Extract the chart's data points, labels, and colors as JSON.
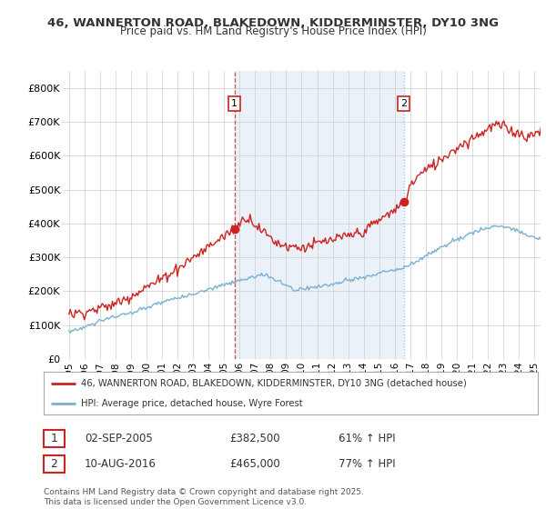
{
  "title_line1": "46, WANNERTON ROAD, BLAKEDOWN, KIDDERMINSTER, DY10 3NG",
  "title_line2": "Price paid vs. HM Land Registry's House Price Index (HPI)",
  "ylim": [
    0,
    850000
  ],
  "yticks": [
    0,
    100000,
    200000,
    300000,
    400000,
    500000,
    600000,
    700000,
    800000
  ],
  "ytick_labels": [
    "£0",
    "£100K",
    "£200K",
    "£300K",
    "£400K",
    "£500K",
    "£600K",
    "£700K",
    "£800K"
  ],
  "xlim_start": 1994.6,
  "xlim_end": 2025.4,
  "xticks": [
    1995,
    1996,
    1997,
    1998,
    1999,
    2000,
    2001,
    2002,
    2003,
    2004,
    2005,
    2006,
    2007,
    2008,
    2009,
    2010,
    2011,
    2012,
    2013,
    2014,
    2015,
    2016,
    2017,
    2018,
    2019,
    2020,
    2021,
    2022,
    2023,
    2024,
    2025
  ],
  "line1_color": "#cc2222",
  "line2_color": "#7ab0d4",
  "marker1_date": 2005.67,
  "marker1_price": 382500,
  "marker1_label": "1",
  "marker2_date": 2016.58,
  "marker2_price": 465000,
  "marker2_label": "2",
  "vline1_color": "#cc2222",
  "vline2_color": "#7ab0d4",
  "shade_color": "#dce9f5",
  "legend_line1": "46, WANNERTON ROAD, BLAKEDOWN, KIDDERMINSTER, DY10 3NG (detached house)",
  "legend_line2": "HPI: Average price, detached house, Wyre Forest",
  "table_row1": [
    "1",
    "02-SEP-2005",
    "£382,500",
    "61% ↑ HPI"
  ],
  "table_row2": [
    "2",
    "10-AUG-2016",
    "£465,000",
    "77% ↑ HPI"
  ],
  "footer": "Contains HM Land Registry data © Crown copyright and database right 2025.\nThis data is licensed under the Open Government Licence v3.0.",
  "bg_color": "#ffffff",
  "grid_color": "#cccccc"
}
